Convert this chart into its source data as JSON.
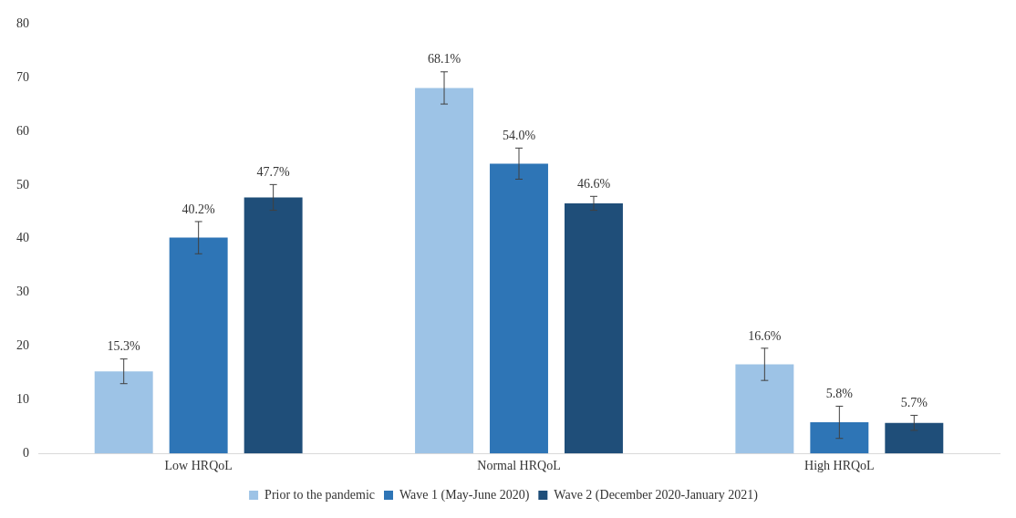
{
  "chart_data": {
    "type": "bar",
    "categories": [
      "Low HRQoL",
      "Normal HRQoL",
      "High HRQoL"
    ],
    "series": [
      {
        "name": "Prior to the pandemic",
        "color": "#9dc3e6",
        "values": [
          15.3,
          68.1,
          16.6
        ],
        "errors": [
          2.3,
          3,
          3
        ],
        "value_labels": [
          "15.3%",
          "68.1%",
          "16.6%"
        ]
      },
      {
        "name": "Wave 1 (May-June 2020)",
        "color": "#2e75b6",
        "values": [
          40.2,
          54.0,
          5.8
        ],
        "errors": [
          3,
          2.9,
          3
        ],
        "value_labels": [
          "40.2%",
          "54.0%",
          "5.8%"
        ]
      },
      {
        "name": "Wave 2 (December 2020-January 2021)",
        "color": "#1f4e79",
        "values": [
          47.7,
          46.6,
          5.7
        ],
        "errors": [
          2.4,
          1.3,
          1.4
        ],
        "value_labels": [
          "47.7%",
          "46.6%",
          "5.7%"
        ]
      }
    ],
    "ylim": [
      0,
      80
    ],
    "yticks": [
      0,
      10,
      20,
      30,
      40,
      50,
      60,
      70,
      80
    ],
    "grid": false,
    "legend": "bottom"
  }
}
